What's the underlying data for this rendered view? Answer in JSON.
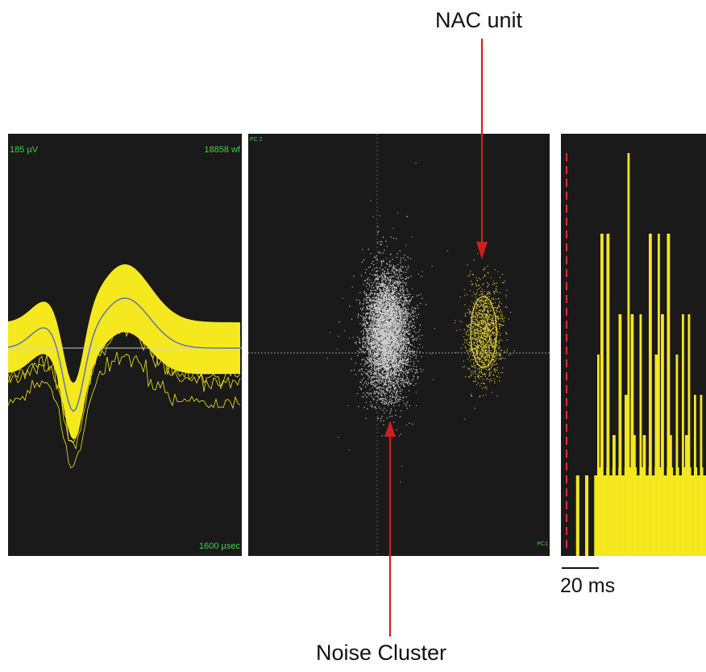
{
  "annotations": {
    "unit_label": "NAC unit",
    "noise_label": "Noise Cluster",
    "arrow_color": "#cc1f1f"
  },
  "waveform_panel": {
    "amplitude_label": "185 µV",
    "count_label": "18858 wf",
    "duration_label": "1600 µsec",
    "trace_color": "#f5e81e",
    "mean_color": "#5e77b5",
    "text_color": "#3fd33f"
  },
  "pca_panel": {
    "y_axis_label": "PC 2",
    "x_axis_label": "PC1",
    "noise_color": "#d0d0d0",
    "unit_color": "#e6d23a"
  },
  "psth_panel": {
    "scale_bar_label": "20 ms",
    "bar_color": "#f5e81e",
    "marker_color": "#e02a2a"
  }
}
